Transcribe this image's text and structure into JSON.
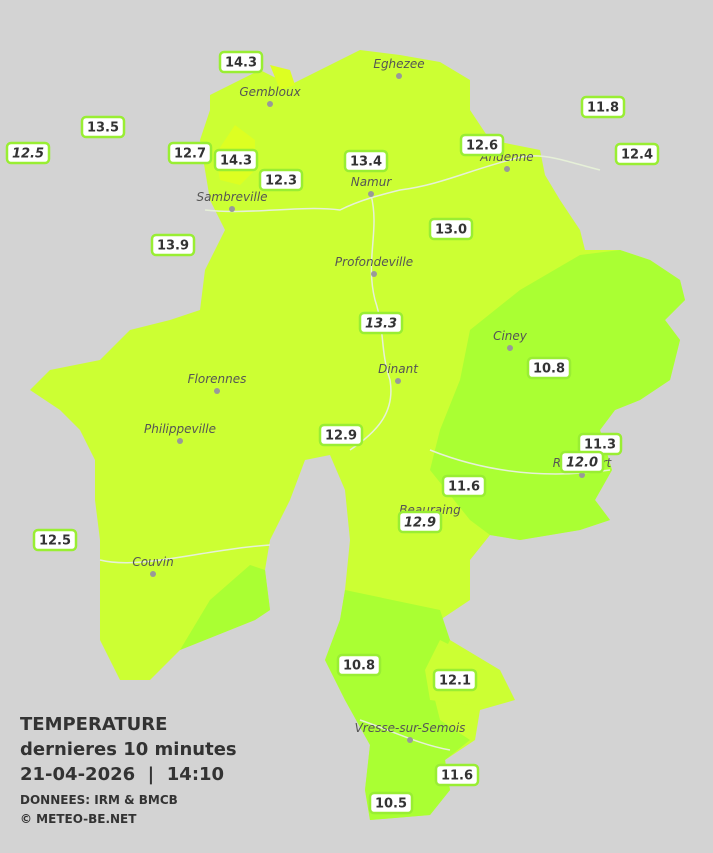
{
  "legend": {
    "title": "TEMPERATURE",
    "subtitle": "dernieres 10 minutes",
    "timestamp": "21-04-2026  |  14:10",
    "source": "DONNEES: IRM & BMCB",
    "credit": "© METEO-BE.NET"
  },
  "cities": [
    "Eghezee",
    "Gembloux",
    "Andenne",
    "Namur",
    "Sambreville",
    "Profondeville",
    "Ciney",
    "Dinant",
    "Florennes",
    "Philippeville",
    "Beauraing",
    "Rochefort",
    "Couvin",
    "Vresse-sur-Semois"
  ],
  "stations": [
    {
      "label": "14.3"
    },
    {
      "label": "13.5"
    },
    {
      "label": "12.5",
      "italic": true
    },
    {
      "label": "12.7"
    },
    {
      "label": "14.3"
    },
    {
      "label": "12.3"
    },
    {
      "label": "13.4"
    },
    {
      "label": "12.6"
    },
    {
      "label": "11.8"
    },
    {
      "label": "12.4"
    },
    {
      "label": "13.9"
    },
    {
      "label": "13.0"
    },
    {
      "label": "13.3",
      "italic": true
    },
    {
      "label": "10.8"
    },
    {
      "label": "12.9"
    },
    {
      "label": "11.3"
    },
    {
      "label": "12.0",
      "italic": true
    },
    {
      "label": "11.6"
    },
    {
      "label": "12.9",
      "italic": true
    },
    {
      "label": "12.5"
    },
    {
      "label": "10.8"
    },
    {
      "label": "12.1"
    },
    {
      "label": "11.6"
    },
    {
      "label": "10.5"
    }
  ]
}
